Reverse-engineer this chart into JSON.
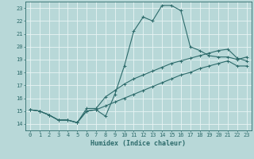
{
  "xlabel": "Humidex (Indice chaleur)",
  "xlim": [
    -0.5,
    23.5
  ],
  "ylim": [
    13.5,
    23.5
  ],
  "xticks": [
    0,
    1,
    2,
    3,
    4,
    5,
    6,
    7,
    8,
    9,
    10,
    11,
    12,
    13,
    14,
    15,
    16,
    17,
    18,
    19,
    20,
    21,
    22,
    23
  ],
  "yticks": [
    14,
    15,
    16,
    17,
    18,
    19,
    20,
    21,
    22,
    23
  ],
  "bg_color": "#b8d8d8",
  "line_color": "#2d6b6b",
  "grid_color": "#e8f4f4",
  "line1_x": [
    0,
    1,
    2,
    3,
    4,
    5,
    6,
    7,
    8,
    9,
    10,
    11,
    12,
    13,
    14,
    15,
    16,
    17,
    18,
    19,
    20,
    21,
    22,
    23
  ],
  "line1_y": [
    15.1,
    15.0,
    14.7,
    14.3,
    14.3,
    14.1,
    15.0,
    15.1,
    14.6,
    16.3,
    18.5,
    21.2,
    22.3,
    22.0,
    23.2,
    23.2,
    22.8,
    20.0,
    19.7,
    19.3,
    19.2,
    19.2,
    19.0,
    19.2
  ],
  "line2_x": [
    0,
    1,
    2,
    3,
    4,
    5,
    6,
    7,
    8,
    9,
    10,
    11,
    12,
    13,
    14,
    15,
    16,
    17,
    18,
    19,
    20,
    21,
    22,
    23
  ],
  "line2_y": [
    15.1,
    15.0,
    14.7,
    14.3,
    14.3,
    14.1,
    15.2,
    15.2,
    16.1,
    16.6,
    17.1,
    17.5,
    17.8,
    18.1,
    18.4,
    18.7,
    18.9,
    19.1,
    19.3,
    19.5,
    19.7,
    19.8,
    19.1,
    18.9
  ],
  "line3_x": [
    0,
    1,
    2,
    3,
    4,
    5,
    6,
    7,
    8,
    9,
    10,
    11,
    12,
    13,
    14,
    15,
    16,
    17,
    18,
    19,
    20,
    21,
    22,
    23
  ],
  "line3_y": [
    15.1,
    15.0,
    14.7,
    14.3,
    14.3,
    14.1,
    15.0,
    15.1,
    15.4,
    15.7,
    16.0,
    16.3,
    16.6,
    16.9,
    17.2,
    17.5,
    17.8,
    18.0,
    18.3,
    18.5,
    18.7,
    18.9,
    18.5,
    18.5
  ]
}
